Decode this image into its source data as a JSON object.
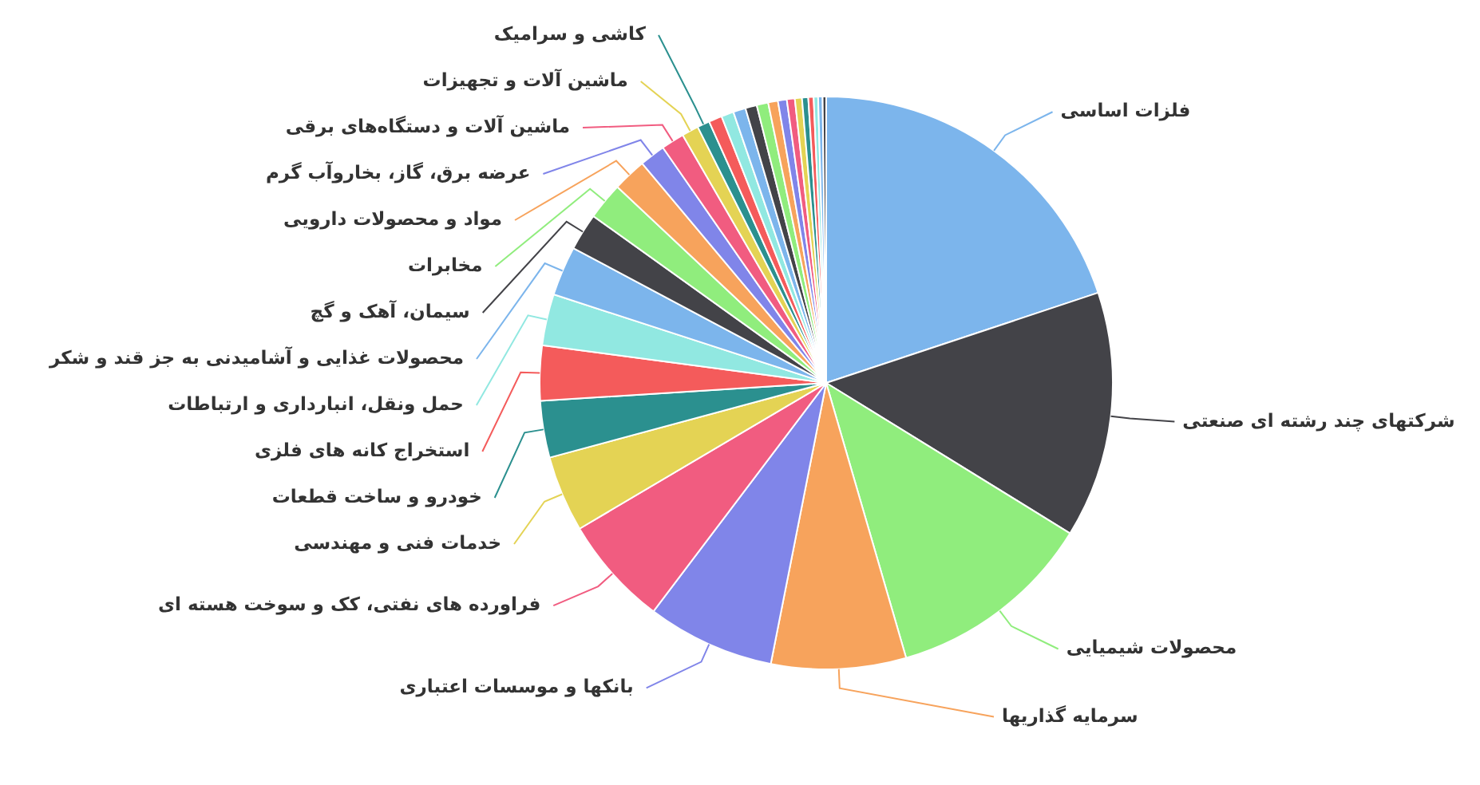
{
  "chart_data": {
    "type": "pie",
    "categories": [
      "فلزات اساسی",
      "شرکتهای چند رشته ای صنعتی",
      "محصولات شیمیایی",
      "سرمایه گذاریها",
      "بانکها و موسسات اعتباری",
      "فراورده های نفتی، کک و سوخت هسته ای",
      "خدمات فنی و مهندسی",
      "خودرو و ساخت قطعات",
      "استخراج کانه های فلزی",
      "حمل ونقل، انبارداری و ارتباطات",
      "محصولات غذایی و آشامیدنی به جز قند و شکر",
      "سیمان، آهک و گچ",
      "مخابرات",
      "مواد و محصولات دارویی",
      "عرضه برق، گاز، بخاروآب گرم",
      "ماشین آلات و دستگاه‌های برقی",
      "ماشین آلات و تجهیزات",
      "کاشی و سرامیک",
      null,
      null,
      null,
      null,
      null,
      null,
      null,
      null,
      null,
      null,
      null,
      null,
      null,
      null
    ],
    "values": [
      19.9,
      13.9,
      11.7,
      7.6,
      7.2,
      6.2,
      4.3,
      3.2,
      3.1,
      2.9,
      2.8,
      2.1,
      2.1,
      1.9,
      1.45,
      1.3,
      0.95,
      0.7,
      0.75,
      0.7,
      0.7,
      0.65,
      0.65,
      0.55,
      0.5,
      0.45,
      0.4,
      0.35,
      0.3,
      0.25,
      0.25,
      0.2
    ],
    "colors": [
      "#7cb5ec",
      "#434348",
      "#90ed7d",
      "#f7a35c",
      "#8085e9",
      "#f15c80",
      "#e4d354",
      "#2b908f",
      "#f45b5b",
      "#91e8e1",
      "#7cb5ec",
      "#434348",
      "#90ed7d",
      "#f7a35c",
      "#8085e9",
      "#f15c80",
      "#e4d354",
      "#2b908f",
      "#f45b5b",
      "#91e8e1",
      "#7cb5ec",
      "#434348",
      "#90ed7d",
      "#f7a35c",
      "#8085e9",
      "#f15c80",
      "#e4d354",
      "#2b908f",
      "#f45b5b",
      "#91e8e1",
      "#7cb5ec",
      "#434348"
    ]
  }
}
